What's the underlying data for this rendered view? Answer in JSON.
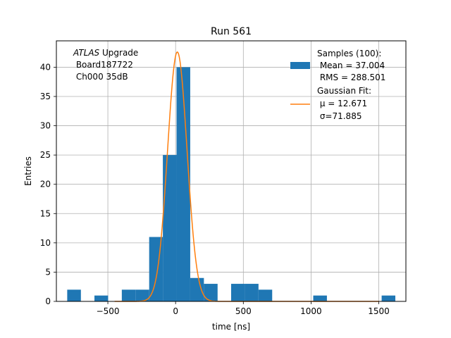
{
  "chart_data": {
    "type": "bar",
    "title": "Run 561",
    "xlabel": "time [ns]",
    "ylabel": "Entries",
    "xlim": [
      -880,
      1700
    ],
    "ylim": [
      0,
      44.5
    ],
    "xticks": [
      -500,
      0,
      500,
      1000,
      1500
    ],
    "xtick_labels": [
      "−500",
      "0",
      "500",
      "1000",
      "1500"
    ],
    "yticks": [
      0,
      5,
      10,
      15,
      20,
      25,
      30,
      35,
      40
    ],
    "yticks_labels": [
      "0",
      "5",
      "10",
      "15",
      "20",
      "25",
      "30",
      "35",
      "40"
    ],
    "grid": true,
    "annotation": {
      "italic": "ATLAS",
      "rest": " Upgrade",
      "line2": " Board187722",
      "line3": " Ch000 35dB"
    },
    "series": [
      {
        "name": "Samples (100):",
        "kind": "histogram",
        "color": "#1f77b4",
        "bin_width": 101,
        "bin_lefts": [
          -800,
          -599,
          -397,
          -296,
          -195,
          -94,
          7,
          108,
          209,
          410,
          511,
          612,
          1016,
          1521
        ],
        "counts": [
          2,
          1,
          2,
          2,
          11,
          25,
          40,
          4,
          3,
          3,
          3,
          2,
          1,
          1
        ],
        "legend_lines": [
          " Mean = 37.004",
          " RMS = 288.501"
        ]
      },
      {
        "name": "Gaussian Fit:",
        "kind": "line",
        "color": "#ff7f0e",
        "mu": 12.671,
        "sigma": 71.885,
        "amplitude": 42.6,
        "x_range": [
          -450,
          1500
        ],
        "legend_lines": [
          " μ = 12.671",
          " σ=71.885"
        ]
      }
    ],
    "legend_position": "top-right"
  }
}
